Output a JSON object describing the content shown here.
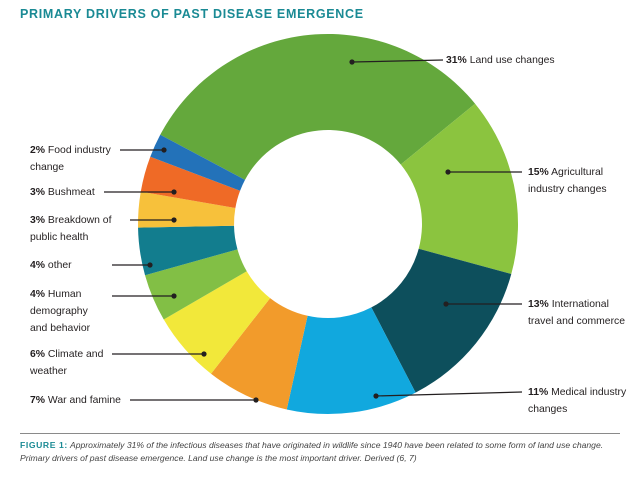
{
  "chart_data": {
    "type": "pie",
    "title": "PRIMARY DRIVERS OF PAST DISEASE EMERGENCE",
    "donut": true,
    "slices": [
      {
        "pct": "31%",
        "value": 31,
        "name": "Land use changes",
        "color": "#64a83c"
      },
      {
        "pct": "15%",
        "value": 15,
        "name": "Agricultural industry changes",
        "color": "#8bc43f"
      },
      {
        "pct": "13%",
        "value": 13,
        "name": "International travel and commerce",
        "color": "#0d4f5c"
      },
      {
        "pct": "11%",
        "value": 11,
        "name": "Medical industry changes",
        "color": "#11a8de"
      },
      {
        "pct": "7%",
        "value": 7,
        "name": "War and famine",
        "color": "#f29b2b"
      },
      {
        "pct": "6%",
        "value": 6,
        "name": "Climate and weather",
        "color": "#f2e83a"
      },
      {
        "pct": "4%",
        "value": 4,
        "name": "Human demography and behavior",
        "color": "#82bf45"
      },
      {
        "pct": "4%",
        "value": 4,
        "name": "other",
        "color": "#127d8e"
      },
      {
        "pct": "3%",
        "value": 3,
        "name": "Breakdown of public health",
        "color": "#f7c13b"
      },
      {
        "pct": "3%",
        "value": 3,
        "name": "Bushmeat",
        "color": "#ef6a26"
      },
      {
        "pct": "2%",
        "value": 2,
        "name": "Food industry change",
        "color": "#2372b9"
      }
    ]
  },
  "caption": {
    "figure_label": "FIGURE 1:",
    "text": "Approximately 31% of the infectious diseases that have originated in wildlife since 1940 have been related to some form of land use change. Primary drivers of past disease emergence. Land use change is the most important driver. Derived (6, 7)"
  }
}
